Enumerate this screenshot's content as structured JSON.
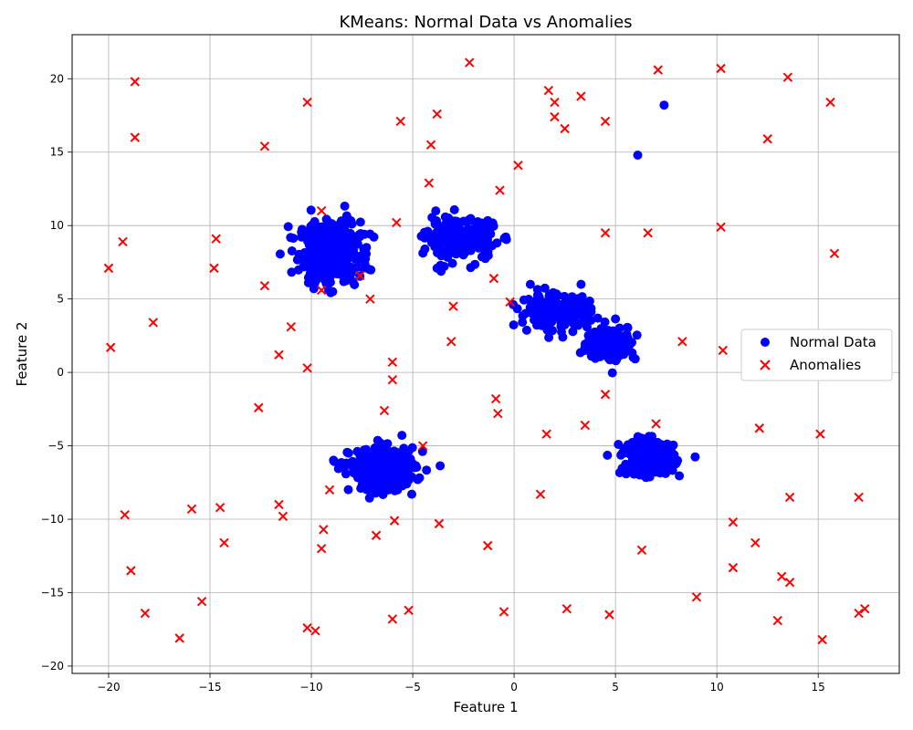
{
  "chart_data": {
    "type": "scatter",
    "title": "KMeans: Normal Data vs Anomalies",
    "xlabel": "Feature 1",
    "ylabel": "Feature 2",
    "xlim": [
      -21.8,
      19.0
    ],
    "ylim": [
      -20.5,
      23.0
    ],
    "xticks": [
      -20,
      -15,
      -10,
      -5,
      0,
      5,
      10,
      15
    ],
    "yticks": [
      -20,
      -15,
      -10,
      -5,
      0,
      5,
      10,
      15,
      20
    ],
    "xtick_labels": [
      "−20",
      "−15",
      "−10",
      "−5",
      "0",
      "5",
      "10",
      "15"
    ],
    "ytick_labels": [
      "−20",
      "−15",
      "−10",
      "−5",
      "0",
      "5",
      "10",
      "15",
      "20"
    ],
    "grid": true,
    "legend_position": "center-right",
    "colors": {
      "normal": "#0000ff",
      "anomaly": "#ff0000"
    },
    "clusters": [
      {
        "name": "cluster-1",
        "center": [
          -9.1,
          8.2
        ],
        "spread": [
          0.75,
          1.05
        ],
        "count": 420
      },
      {
        "name": "cluster-2",
        "center": [
          -2.6,
          9.0
        ],
        "spread": [
          0.85,
          0.7
        ],
        "count": 220
      },
      {
        "name": "cluster-3",
        "center": [
          2.0,
          4.2
        ],
        "spread": [
          0.85,
          0.55
        ],
        "count": 180
      },
      {
        "name": "cluster-4",
        "center": [
          4.8,
          2.0
        ],
        "spread": [
          0.6,
          0.6
        ],
        "count": 170
      },
      {
        "name": "cluster-5",
        "center": [
          -6.5,
          -6.6
        ],
        "spread": [
          0.8,
          0.7
        ],
        "count": 380
      },
      {
        "name": "cluster-6",
        "center": [
          6.6,
          -5.8
        ],
        "spread": [
          0.65,
          0.6
        ],
        "count": 220
      }
    ],
    "normal_outliers": [
      [
        6.1,
        14.8
      ],
      [
        7.4,
        18.2
      ],
      [
        -3.8,
        7.1
      ],
      [
        0.8,
        6.0
      ],
      [
        3.3,
        6.0
      ],
      [
        2.4,
        2.4
      ],
      [
        -4.4,
        8.4
      ],
      [
        -8.0,
        10.1
      ]
    ],
    "series": [
      {
        "name": "Anomalies",
        "marker": "x",
        "points": [
          [
            -18.7,
            19.8
          ],
          [
            -18.7,
            16.0
          ],
          [
            -10.2,
            18.4
          ],
          [
            -5.6,
            17.1
          ],
          [
            -3.8,
            17.6
          ],
          [
            -4.1,
            15.5
          ],
          [
            -12.3,
            15.4
          ],
          [
            -2.2,
            21.1
          ],
          [
            1.7,
            19.2
          ],
          [
            2.0,
            18.4
          ],
          [
            3.3,
            18.8
          ],
          [
            2.0,
            17.4
          ],
          [
            2.5,
            16.6
          ],
          [
            4.5,
            17.1
          ],
          [
            7.1,
            20.6
          ],
          [
            10.2,
            20.7
          ],
          [
            13.5,
            20.1
          ],
          [
            15.6,
            18.4
          ],
          [
            12.5,
            15.9
          ],
          [
            0.2,
            14.1
          ],
          [
            -4.2,
            12.9
          ],
          [
            -0.7,
            12.4
          ],
          [
            -9.5,
            11.0
          ],
          [
            -5.8,
            10.2
          ],
          [
            -19.3,
            8.9
          ],
          [
            -14.7,
            9.1
          ],
          [
            -20.0,
            7.1
          ],
          [
            -14.8,
            7.1
          ],
          [
            4.5,
            9.5
          ],
          [
            6.6,
            9.5
          ],
          [
            10.2,
            9.9
          ],
          [
            15.8,
            8.1
          ],
          [
            -12.3,
            5.9
          ],
          [
            -9.5,
            5.6
          ],
          [
            -7.6,
            6.6
          ],
          [
            -7.1,
            5.0
          ],
          [
            -1.0,
            6.4
          ],
          [
            -0.2,
            4.8
          ],
          [
            -3.0,
            4.5
          ],
          [
            -17.8,
            3.4
          ],
          [
            -11.0,
            3.1
          ],
          [
            -19.9,
            1.7
          ],
          [
            -11.6,
            1.2
          ],
          [
            -10.2,
            0.3
          ],
          [
            -3.1,
            2.1
          ],
          [
            -6.0,
            0.7
          ],
          [
            -6.0,
            -0.5
          ],
          [
            8.3,
            2.1
          ],
          [
            10.3,
            1.5
          ],
          [
            -12.6,
            -2.4
          ],
          [
            -6.4,
            -2.6
          ],
          [
            -0.9,
            -1.8
          ],
          [
            -0.8,
            -2.8
          ],
          [
            4.5,
            -1.5
          ],
          [
            3.5,
            -3.6
          ],
          [
            1.6,
            -4.2
          ],
          [
            7.0,
            -3.5
          ],
          [
            12.1,
            -3.8
          ],
          [
            15.1,
            -4.2
          ],
          [
            -4.5,
            -5.0
          ],
          [
            -9.1,
            -8.0
          ],
          [
            1.3,
            -8.3
          ],
          [
            13.6,
            -8.5
          ],
          [
            17.0,
            -8.5
          ],
          [
            -11.6,
            -9.0
          ],
          [
            -15.9,
            -9.3
          ],
          [
            -14.5,
            -9.2
          ],
          [
            -19.2,
            -9.7
          ],
          [
            -11.4,
            -9.8
          ],
          [
            -5.9,
            -10.1
          ],
          [
            -3.7,
            -10.3
          ],
          [
            -9.4,
            -10.7
          ],
          [
            10.8,
            -10.2
          ],
          [
            -6.8,
            -11.1
          ],
          [
            -14.3,
            -11.6
          ],
          [
            -9.5,
            -12.0
          ],
          [
            -1.3,
            -11.8
          ],
          [
            6.3,
            -12.1
          ],
          [
            11.9,
            -11.6
          ],
          [
            -18.9,
            -13.5
          ],
          [
            10.8,
            -13.3
          ],
          [
            13.2,
            -13.9
          ],
          [
            13.6,
            -14.3
          ],
          [
            -15.4,
            -15.6
          ],
          [
            9.0,
            -15.3
          ],
          [
            -18.2,
            -16.4
          ],
          [
            -5.2,
            -16.2
          ],
          [
            -0.5,
            -16.3
          ],
          [
            2.6,
            -16.1
          ],
          [
            4.7,
            -16.5
          ],
          [
            17.3,
            -16.1
          ],
          [
            17.0,
            -16.4
          ],
          [
            -6.0,
            -16.8
          ],
          [
            13.0,
            -16.9
          ],
          [
            -16.5,
            -18.1
          ],
          [
            -10.2,
            -17.4
          ],
          [
            -9.8,
            -17.6
          ],
          [
            15.2,
            -18.2
          ]
        ]
      }
    ],
    "legend": [
      "Normal Data",
      "Anomalies"
    ]
  }
}
